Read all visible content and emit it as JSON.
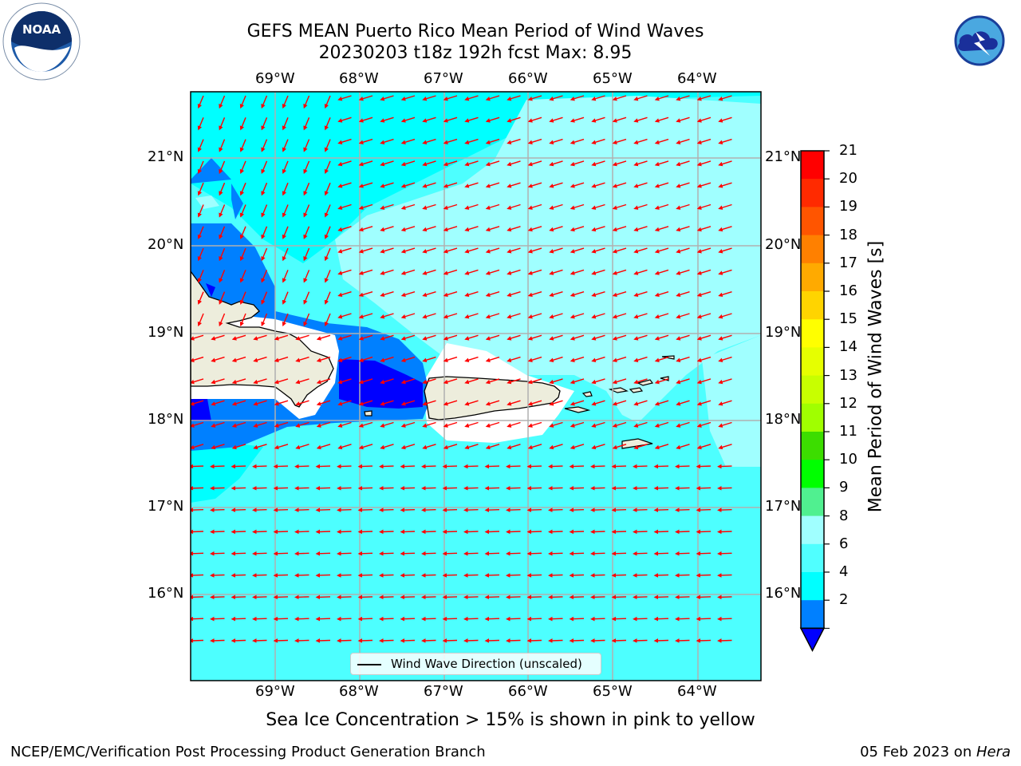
{
  "title_line1": "GEFS MEAN Puerto Rico Mean Period of Wind Waves",
  "title_line2": "20230203 t18z 192h fcst   Max: 8.95",
  "top_lon_labels": [
    "69°W",
    "68°W",
    "67°W",
    "66°W",
    "65°W",
    "64°W"
  ],
  "bottom_lon_labels": [
    "69°W",
    "68°W",
    "67°W",
    "66°W",
    "65°W",
    "64°W"
  ],
  "left_lat_labels": [
    "21°N",
    "20°N",
    "19°N",
    "18°N",
    "17°N",
    "16°N"
  ],
  "right_lat_labels": [
    "21°N",
    "20°N",
    "19°N",
    "18°N",
    "17°N",
    "16°N"
  ],
  "colorbar": {
    "label": "Mean Period of Wind Waves [s]",
    "tick_labels": [
      "21",
      "20",
      "19",
      "18",
      "17",
      "16",
      "15",
      "14",
      "13",
      "12",
      "11",
      "10",
      "9",
      "8",
      "6",
      "4",
      "2"
    ],
    "colors": [
      "#ff0000",
      "#ff2a00",
      "#ff5500",
      "#ff8000",
      "#ffaa00",
      "#ffd400",
      "#ffff00",
      "#e6ff00",
      "#c8ff00",
      "#a0ff00",
      "#3cdd00",
      "#00ff00",
      "#50f090",
      "#a0ffff",
      "#50ffff",
      "#00ffff",
      "#0080ff"
    ],
    "extend_color": "#0000ff"
  },
  "legend_text": "Wind Wave Direction (unscaled)",
  "bottom_note": "Sea Ice Concentration > 15% is shown in pink to yellow",
  "credit": "NCEP/EMC/Verification Post Processing Product Generation Branch",
  "date_text": "05 Feb 2023 on ",
  "date_host": "Hera",
  "logo_noaa": "NOAA",
  "logo_nws": "NATIONAL WEATHER SERVICE",
  "map_colors": {
    "sea_main": "#4dffff",
    "sea_light": "#a0ffff",
    "sea_dark": "#00ffff",
    "blue": "#0080ff",
    "deep_blue": "#0000ff",
    "land": "#ededdc",
    "arrow": "#ff0000",
    "grid": "#b0b0b0"
  }
}
